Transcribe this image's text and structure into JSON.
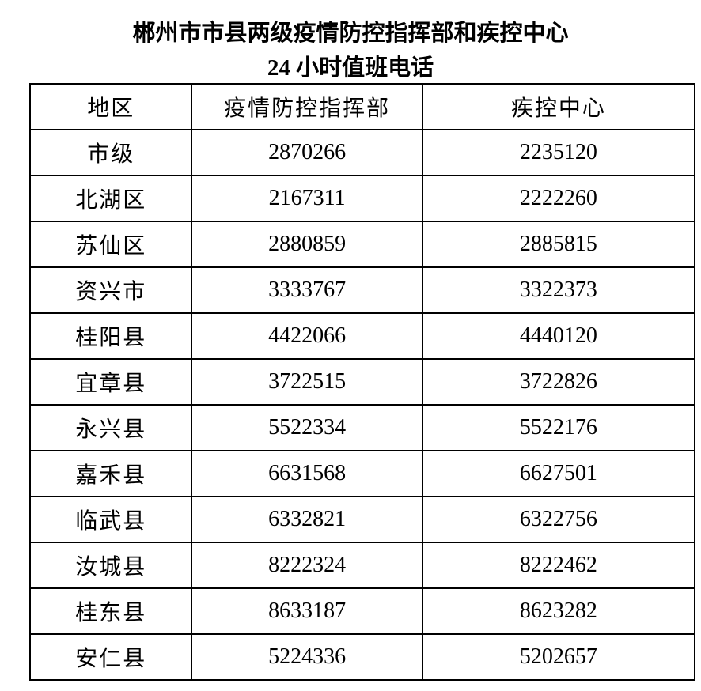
{
  "title_line1": "郴州市市县两级疫情防控指挥部和疾控中心",
  "title_line2": "24 小时值班电话",
  "table": {
    "headers": [
      "地区",
      "疫情防控指挥部",
      "疾控中心"
    ],
    "rows": [
      [
        "市级",
        "2870266",
        "2235120"
      ],
      [
        "北湖区",
        "2167311",
        "2222260"
      ],
      [
        "苏仙区",
        "2880859",
        "2885815"
      ],
      [
        "资兴市",
        "3333767",
        "3322373"
      ],
      [
        "桂阳县",
        "4422066",
        "4440120"
      ],
      [
        "宜章县",
        "3722515",
        "3722826"
      ],
      [
        "永兴县",
        "5522334",
        "5522176"
      ],
      [
        "嘉禾县",
        "6631568",
        "6627501"
      ],
      [
        "临武县",
        "6332821",
        "6322756"
      ],
      [
        "汝城县",
        "8222324",
        "8222462"
      ],
      [
        "桂东县",
        "8633187",
        "8623282"
      ],
      [
        "安仁县",
        "5224336",
        "5202657"
      ]
    ]
  }
}
